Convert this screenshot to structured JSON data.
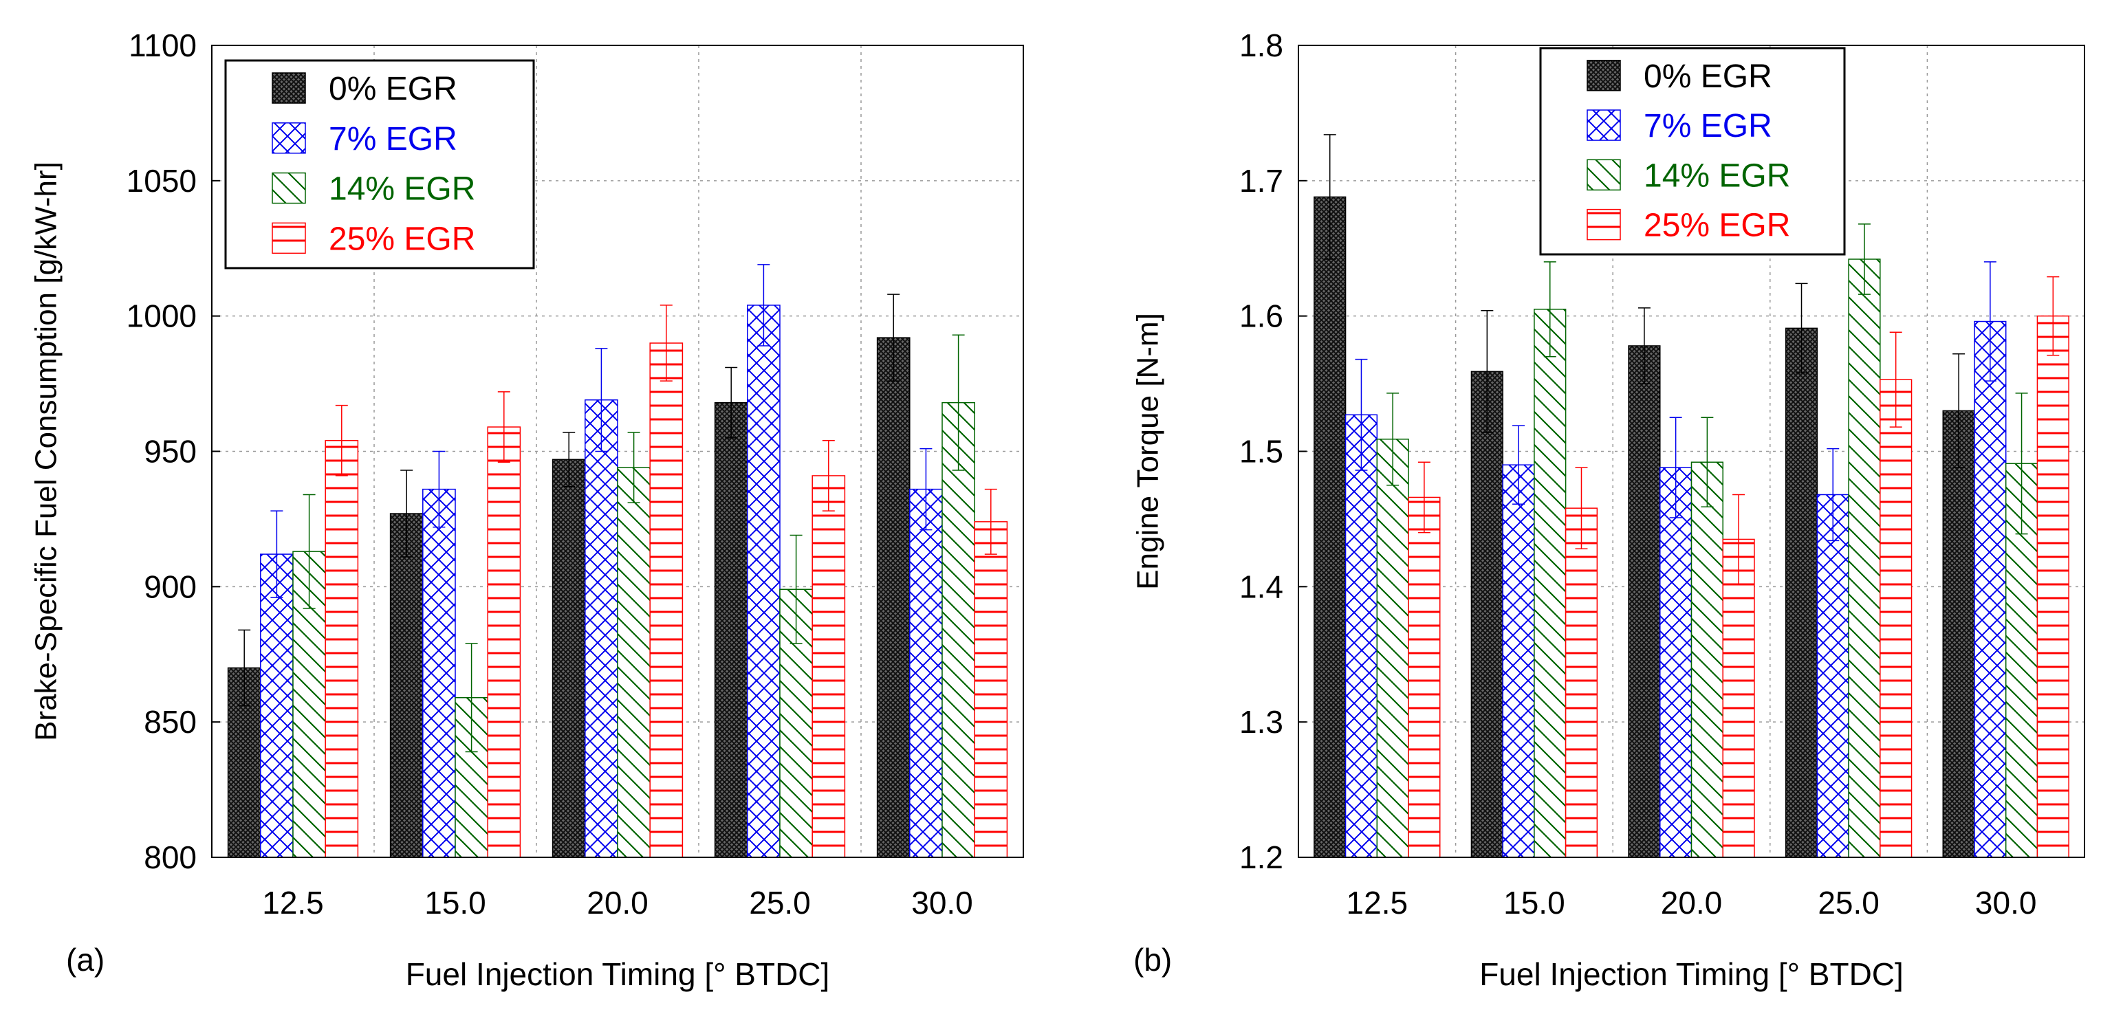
{
  "series_colors": [
    "#000000",
    "#0000ee",
    "#006400",
    "#ff0000"
  ],
  "chart_data": [
    {
      "type": "bar",
      "panel_label": "(a)",
      "title": "",
      "xlabel": "Fuel Injection Timing [° BTDC]",
      "ylabel": "Brake-Specific Fuel Consumption [g/kW-hr]",
      "ylim": [
        800,
        1100
      ],
      "yticks": [
        800,
        850,
        900,
        950,
        1000,
        1050,
        1100
      ],
      "grid": true,
      "legend_position": "top-left",
      "categories": [
        "12.5",
        "15.0",
        "20.0",
        "25.0",
        "30.0"
      ],
      "series": [
        {
          "name": "0% EGR",
          "values": [
            870,
            927,
            947,
            968,
            992
          ],
          "errors": [
            14,
            16,
            10,
            13,
            16
          ]
        },
        {
          "name": "7% EGR",
          "values": [
            912,
            936,
            969,
            1004,
            936
          ],
          "errors": [
            16,
            14,
            19,
            15,
            15
          ]
        },
        {
          "name": "14% EGR",
          "values": [
            913,
            859,
            944,
            899,
            968
          ],
          "errors": [
            21,
            20,
            13,
            20,
            25
          ]
        },
        {
          "name": "25% EGR",
          "values": [
            954,
            959,
            990,
            941,
            924
          ],
          "errors": [
            13,
            13,
            14,
            13,
            12
          ]
        }
      ]
    },
    {
      "type": "bar",
      "panel_label": "(b)",
      "title": "",
      "xlabel": "Fuel Injection Timing [° BTDC]",
      "ylabel": "Engine Torque [N-m]",
      "ylim": [
        1.2,
        1.8
      ],
      "yticks": [
        "1.2",
        "1.3",
        "1.4",
        "1.5",
        "1.6",
        "1.7",
        "1.8"
      ],
      "grid": true,
      "legend_position": "top-center",
      "categories": [
        "12.5",
        "15.0",
        "20.0",
        "25.0",
        "30.0"
      ],
      "series": [
        {
          "name": "0% EGR",
          "values": [
            1.688,
            1.559,
            1.578,
            1.591,
            1.53
          ],
          "errors": [
            0.046,
            0.045,
            0.028,
            0.033,
            0.042
          ]
        },
        {
          "name": "7% EGR",
          "values": [
            1.527,
            1.49,
            1.488,
            1.468,
            1.596
          ],
          "errors": [
            0.041,
            0.029,
            0.037,
            0.034,
            0.044
          ]
        },
        {
          "name": "14% EGR",
          "values": [
            1.509,
            1.605,
            1.492,
            1.642,
            1.491
          ],
          "errors": [
            0.034,
            0.035,
            0.033,
            0.026,
            0.052
          ]
        },
        {
          "name": "25% EGR",
          "values": [
            1.466,
            1.458,
            1.435,
            1.553,
            1.6
          ],
          "errors": [
            0.026,
            0.03,
            0.033,
            0.035,
            0.029
          ]
        }
      ]
    }
  ]
}
